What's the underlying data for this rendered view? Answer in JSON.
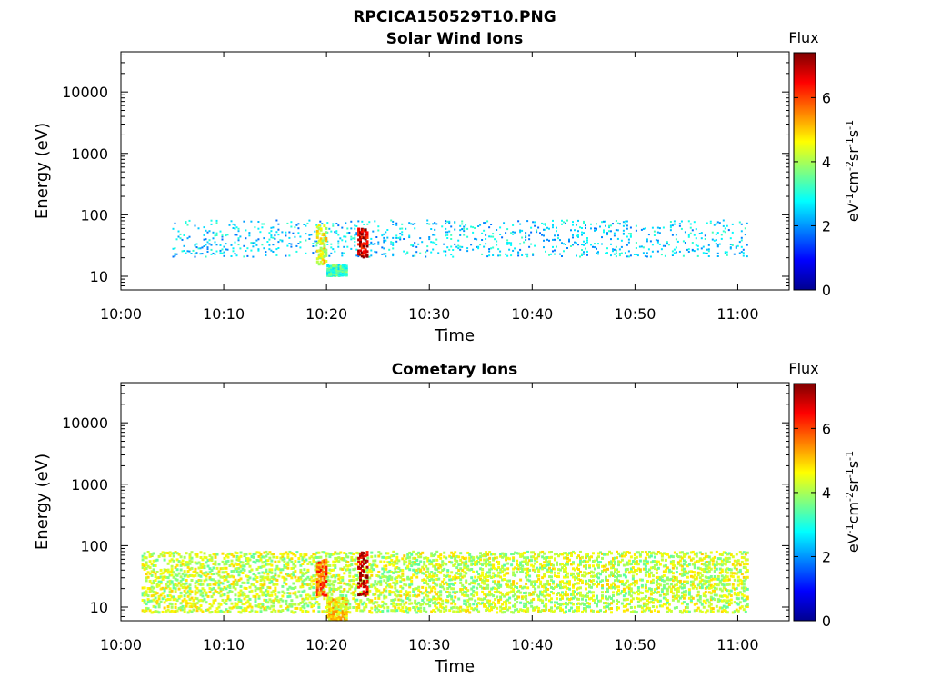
{
  "figure_title": "RPCICA150529T10.PNG",
  "chart_data": [
    {
      "type": "heatmap",
      "title": "Solar Wind Ions",
      "xlabel": "Time",
      "ylabel": "Energy (eV)",
      "y_scale": "log",
      "ylim": [
        6,
        45000
      ],
      "xlim": [
        "10:00",
        "11:05"
      ],
      "x_ticks": [
        "10:00",
        "10:10",
        "10:20",
        "10:30",
        "10:40",
        "10:50",
        "11:00"
      ],
      "y_ticks": [
        "10",
        "100",
        "1000",
        "10000"
      ],
      "colorbar": {
        "title": "Flux",
        "label": "eV-1cm-2sr-1s-1",
        "range": [
          0,
          7.4
        ],
        "ticks": [
          "0",
          "2",
          "4",
          "6"
        ],
        "colormap": "jet"
      },
      "grid": false,
      "features": [
        {
          "time": "10:05-11:01",
          "energy_range": [
            20,
            80
          ],
          "flux_level": 2.5,
          "description": "sparse cyan"
        },
        {
          "time": "10:19-10:20",
          "energy_range": [
            15,
            70
          ],
          "flux_level": 4.5
        },
        {
          "time": "10:20-10:22",
          "energy_range": [
            10,
            15
          ],
          "flux_level": 3.2
        },
        {
          "time": "10:23-10:24",
          "energy_range": [
            20,
            60
          ],
          "flux_level": 6.8
        }
      ]
    },
    {
      "type": "heatmap",
      "title": "Cometary Ions",
      "xlabel": "Time",
      "ylabel": "Energy (eV)",
      "y_scale": "log",
      "ylim": [
        6,
        45000
      ],
      "xlim": [
        "10:00",
        "11:05"
      ],
      "x_ticks": [
        "10:00",
        "10:10",
        "10:20",
        "10:30",
        "10:40",
        "10:50",
        "11:00"
      ],
      "y_ticks": [
        "10",
        "100",
        "1000",
        "10000"
      ],
      "colorbar": {
        "title": "Flux",
        "label": "eV-1cm-2sr-1s-1",
        "range": [
          0,
          7.4
        ],
        "ticks": [
          "0",
          "2",
          "4",
          "6"
        ],
        "colormap": "jet"
      },
      "grid": false,
      "features": [
        {
          "time": "10:02-11:01",
          "energy_range": [
            8,
            80
          ],
          "flux_level": 4.2,
          "description": "dense band"
        },
        {
          "time": "10:19-10:20",
          "energy_range": [
            15,
            60
          ],
          "flux_level": 5.8
        },
        {
          "time": "10:20-10:22",
          "energy_range": [
            6,
            14
          ],
          "flux_level": 4.8
        },
        {
          "time": "10:23-10:24",
          "energy_range": [
            15,
            80
          ],
          "flux_level": 7.0
        }
      ]
    }
  ]
}
